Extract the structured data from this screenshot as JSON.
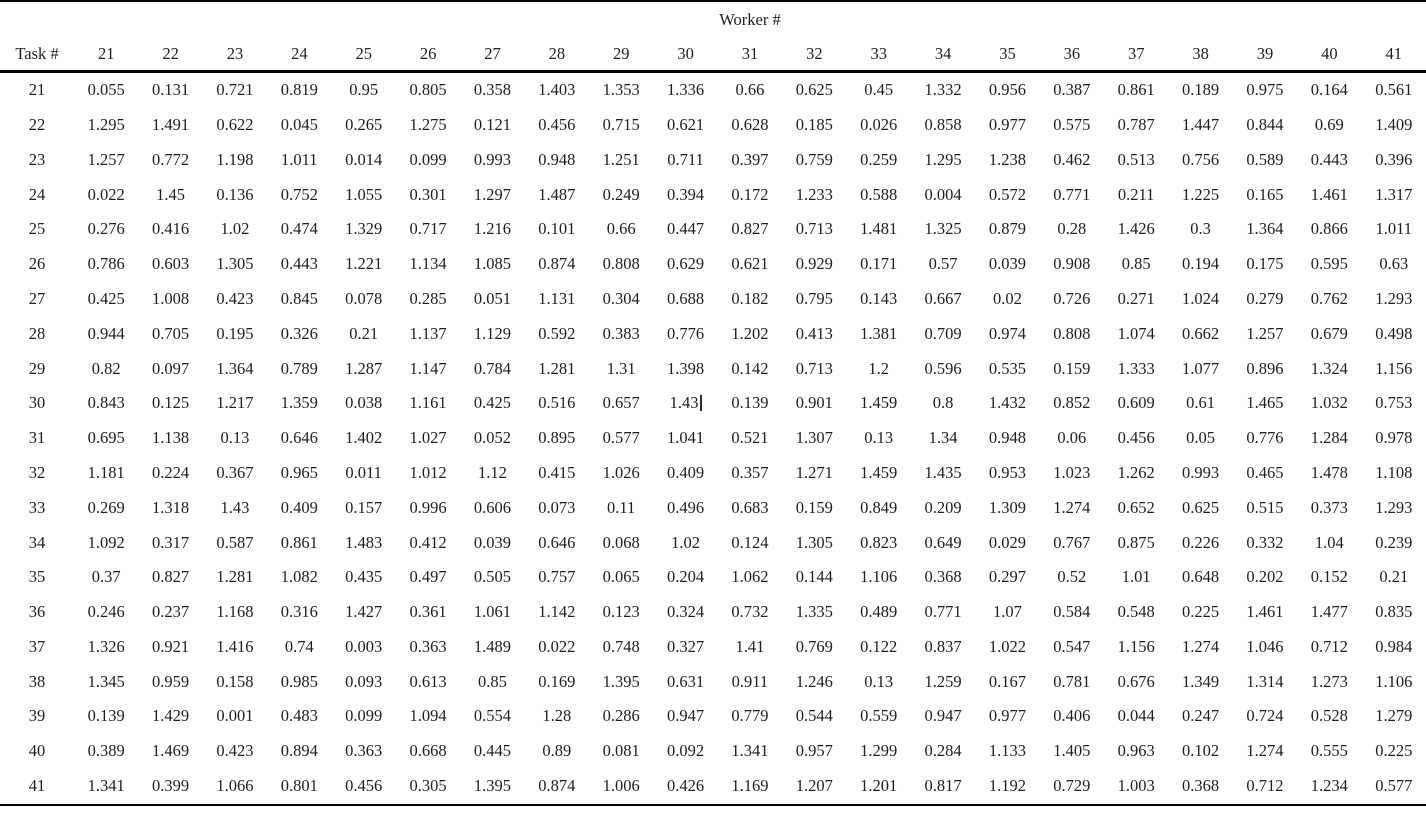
{
  "page": {
    "background": "#ffffff",
    "text_color": "#1e1e1e",
    "rule_color": "#000000"
  },
  "table": {
    "group_header": "Worker #",
    "row_header": "Task #",
    "worker_ids": [
      "21",
      "22",
      "23",
      "24",
      "25",
      "26",
      "27",
      "28",
      "29",
      "30",
      "31",
      "32",
      "33",
      "34",
      "35",
      "36",
      "37",
      "38",
      "39",
      "40",
      "41"
    ],
    "cursor": {
      "task": "30",
      "worker": "30"
    },
    "rows": [
      {
        "task": "21",
        "values": [
          "0.055",
          "0.131",
          "0.721",
          "0.819",
          "0.95",
          "0.805",
          "0.358",
          "1.403",
          "1.353",
          "1.336",
          "0.66",
          "0.625",
          "0.45",
          "1.332",
          "0.956",
          "0.387",
          "0.861",
          "0.189",
          "0.975",
          "0.164",
          "0.561"
        ]
      },
      {
        "task": "22",
        "values": [
          "1.295",
          "1.491",
          "0.622",
          "0.045",
          "0.265",
          "1.275",
          "0.121",
          "0.456",
          "0.715",
          "0.621",
          "0.628",
          "0.185",
          "0.026",
          "0.858",
          "0.977",
          "0.575",
          "0.787",
          "1.447",
          "0.844",
          "0.69",
          "1.409"
        ]
      },
      {
        "task": "23",
        "values": [
          "1.257",
          "0.772",
          "1.198",
          "1.011",
          "0.014",
          "0.099",
          "0.993",
          "0.948",
          "1.251",
          "0.711",
          "0.397",
          "0.759",
          "0.259",
          "1.295",
          "1.238",
          "0.462",
          "0.513",
          "0.756",
          "0.589",
          "0.443",
          "0.396"
        ]
      },
      {
        "task": "24",
        "values": [
          "0.022",
          "1.45",
          "0.136",
          "0.752",
          "1.055",
          "0.301",
          "1.297",
          "1.487",
          "0.249",
          "0.394",
          "0.172",
          "1.233",
          "0.588",
          "0.004",
          "0.572",
          "0.771",
          "0.211",
          "1.225",
          "0.165",
          "1.461",
          "1.317"
        ]
      },
      {
        "task": "25",
        "values": [
          "0.276",
          "0.416",
          "1.02",
          "0.474",
          "1.329",
          "0.717",
          "1.216",
          "0.101",
          "0.66",
          "0.447",
          "0.827",
          "0.713",
          "1.481",
          "1.325",
          "0.879",
          "0.28",
          "1.426",
          "0.3",
          "1.364",
          "0.866",
          "1.011"
        ]
      },
      {
        "task": "26",
        "values": [
          "0.786",
          "0.603",
          "1.305",
          "0.443",
          "1.221",
          "1.134",
          "1.085",
          "0.874",
          "0.808",
          "0.629",
          "0.621",
          "0.929",
          "0.171",
          "0.57",
          "0.039",
          "0.908",
          "0.85",
          "0.194",
          "0.175",
          "0.595",
          "0.63"
        ]
      },
      {
        "task": "27",
        "values": [
          "0.425",
          "1.008",
          "0.423",
          "0.845",
          "0.078",
          "0.285",
          "0.051",
          "1.131",
          "0.304",
          "0.688",
          "0.182",
          "0.795",
          "0.143",
          "0.667",
          "0.02",
          "0.726",
          "0.271",
          "1.024",
          "0.279",
          "0.762",
          "1.293"
        ]
      },
      {
        "task": "28",
        "values": [
          "0.944",
          "0.705",
          "0.195",
          "0.326",
          "0.21",
          "1.137",
          "1.129",
          "0.592",
          "0.383",
          "0.776",
          "1.202",
          "0.413",
          "1.381",
          "0.709",
          "0.974",
          "0.808",
          "1.074",
          "0.662",
          "1.257",
          "0.679",
          "0.498"
        ]
      },
      {
        "task": "29",
        "values": [
          "0.82",
          "0.097",
          "1.364",
          "0.789",
          "1.287",
          "1.147",
          "0.784",
          "1.281",
          "1.31",
          "1.398",
          "0.142",
          "0.713",
          "1.2",
          "0.596",
          "0.535",
          "0.159",
          "1.333",
          "1.077",
          "0.896",
          "1.324",
          "1.156"
        ]
      },
      {
        "task": "30",
        "values": [
          "0.843",
          "0.125",
          "1.217",
          "1.359",
          "0.038",
          "1.161",
          "0.425",
          "0.516",
          "0.657",
          "1.43",
          "0.139",
          "0.901",
          "1.459",
          "0.8",
          "1.432",
          "0.852",
          "0.609",
          "0.61",
          "1.465",
          "1.032",
          "0.753"
        ]
      },
      {
        "task": "31",
        "values": [
          "0.695",
          "1.138",
          "0.13",
          "0.646",
          "1.402",
          "1.027",
          "0.052",
          "0.895",
          "0.577",
          "1.041",
          "0.521",
          "1.307",
          "0.13",
          "1.34",
          "0.948",
          "0.06",
          "0.456",
          "0.05",
          "0.776",
          "1.284",
          "0.978"
        ]
      },
      {
        "task": "32",
        "values": [
          "1.181",
          "0.224",
          "0.367",
          "0.965",
          "0.011",
          "1.012",
          "1.12",
          "0.415",
          "1.026",
          "0.409",
          "0.357",
          "1.271",
          "1.459",
          "1.435",
          "0.953",
          "1.023",
          "1.262",
          "0.993",
          "0.465",
          "1.478",
          "1.108"
        ]
      },
      {
        "task": "33",
        "values": [
          "0.269",
          "1.318",
          "1.43",
          "0.409",
          "0.157",
          "0.996",
          "0.606",
          "0.073",
          "0.11",
          "0.496",
          "0.683",
          "0.159",
          "0.849",
          "0.209",
          "1.309",
          "1.274",
          "0.652",
          "0.625",
          "0.515",
          "0.373",
          "1.293"
        ]
      },
      {
        "task": "34",
        "values": [
          "1.092",
          "0.317",
          "0.587",
          "0.861",
          "1.483",
          "0.412",
          "0.039",
          "0.646",
          "0.068",
          "1.02",
          "0.124",
          "1.305",
          "0.823",
          "0.649",
          "0.029",
          "0.767",
          "0.875",
          "0.226",
          "0.332",
          "1.04",
          "0.239"
        ]
      },
      {
        "task": "35",
        "values": [
          "0.37",
          "0.827",
          "1.281",
          "1.082",
          "0.435",
          "0.497",
          "0.505",
          "0.757",
          "0.065",
          "0.204",
          "1.062",
          "0.144",
          "1.106",
          "0.368",
          "0.297",
          "0.52",
          "1.01",
          "0.648",
          "0.202",
          "0.152",
          "0.21"
        ]
      },
      {
        "task": "36",
        "values": [
          "0.246",
          "0.237",
          "1.168",
          "0.316",
          "1.427",
          "0.361",
          "1.061",
          "1.142",
          "0.123",
          "0.324",
          "0.732",
          "1.335",
          "0.489",
          "0.771",
          "1.07",
          "0.584",
          "0.548",
          "0.225",
          "1.461",
          "1.477",
          "0.835"
        ]
      },
      {
        "task": "37",
        "values": [
          "1.326",
          "0.921",
          "1.416",
          "0.74",
          "0.003",
          "0.363",
          "1.489",
          "0.022",
          "0.748",
          "0.327",
          "1.41",
          "0.769",
          "0.122",
          "0.837",
          "1.022",
          "0.547",
          "1.156",
          "1.274",
          "1.046",
          "0.712",
          "0.984"
        ]
      },
      {
        "task": "38",
        "values": [
          "1.345",
          "0.959",
          "0.158",
          "0.985",
          "0.093",
          "0.613",
          "0.85",
          "0.169",
          "1.395",
          "0.631",
          "0.911",
          "1.246",
          "0.13",
          "1.259",
          "0.167",
          "0.781",
          "0.676",
          "1.349",
          "1.314",
          "1.273",
          "1.106"
        ]
      },
      {
        "task": "39",
        "values": [
          "0.139",
          "1.429",
          "0.001",
          "0.483",
          "0.099",
          "1.094",
          "0.554",
          "1.28",
          "0.286",
          "0.947",
          "0.779",
          "0.544",
          "0.559",
          "0.947",
          "0.977",
          "0.406",
          "0.044",
          "0.247",
          "0.724",
          "0.528",
          "1.279"
        ]
      },
      {
        "task": "40",
        "values": [
          "0.389",
          "1.469",
          "0.423",
          "0.894",
          "0.363",
          "0.668",
          "0.445",
          "0.89",
          "0.081",
          "0.092",
          "1.341",
          "0.957",
          "1.299",
          "0.284",
          "1.133",
          "1.405",
          "0.963",
          "0.102",
          "1.274",
          "0.555",
          "0.225"
        ]
      },
      {
        "task": "41",
        "values": [
          "1.341",
          "0.399",
          "1.066",
          "0.801",
          "0.456",
          "0.305",
          "1.395",
          "0.874",
          "1.006",
          "0.426",
          "1.169",
          "1.207",
          "1.201",
          "0.817",
          "1.192",
          "0.729",
          "1.003",
          "0.368",
          "0.712",
          "1.234",
          "0.577"
        ]
      }
    ]
  }
}
